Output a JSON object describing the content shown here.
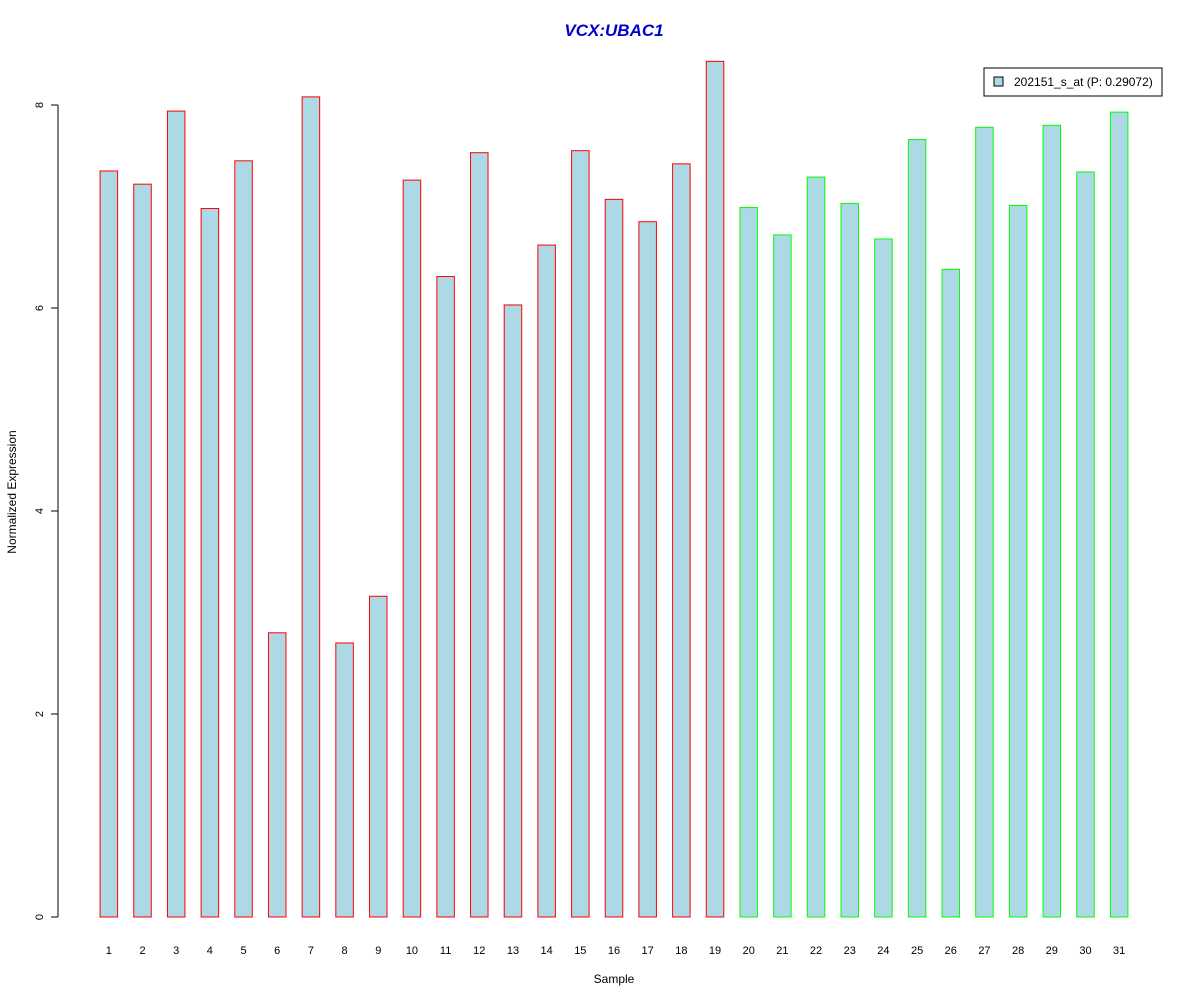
{
  "chart_data": {
    "type": "bar",
    "title": "VCX:UBAC1",
    "xlabel": "Sample",
    "ylabel": "Normalized Expression",
    "ylim": [
      0,
      8.4
    ],
    "yticks": [
      0,
      2,
      4,
      6,
      8
    ],
    "grid": false,
    "legend_position": "top-right",
    "categories": [
      "1",
      "2",
      "3",
      "4",
      "5",
      "6",
      "7",
      "8",
      "9",
      "10",
      "11",
      "12",
      "13",
      "14",
      "15",
      "16",
      "17",
      "18",
      "19",
      "20",
      "21",
      "22",
      "23",
      "24",
      "25",
      "26",
      "27",
      "28",
      "29",
      "30",
      "31"
    ],
    "series": [
      {
        "name": "202151_s_at (P: 0.29072)",
        "values": [
          7.35,
          7.22,
          7.94,
          6.98,
          7.45,
          2.8,
          8.08,
          2.7,
          3.16,
          7.26,
          6.31,
          7.53,
          6.03,
          6.62,
          7.55,
          7.07,
          6.85,
          7.42,
          8.43,
          6.99,
          6.72,
          7.29,
          7.03,
          6.68,
          7.66,
          6.38,
          7.78,
          7.01,
          7.8,
          7.34,
          7.93
        ]
      }
    ],
    "groups": [
      "red",
      "red",
      "red",
      "red",
      "red",
      "red",
      "red",
      "red",
      "red",
      "red",
      "red",
      "red",
      "red",
      "red",
      "red",
      "red",
      "red",
      "red",
      "red",
      "green",
      "green",
      "green",
      "green",
      "green",
      "green",
      "green",
      "green",
      "green",
      "green",
      "green",
      "green"
    ]
  },
  "colors": {
    "bar_fill": "#add8e6",
    "red_border": "#ff0000",
    "green_border": "#00ff00",
    "title": "#0000cd",
    "axis": "#000000"
  }
}
